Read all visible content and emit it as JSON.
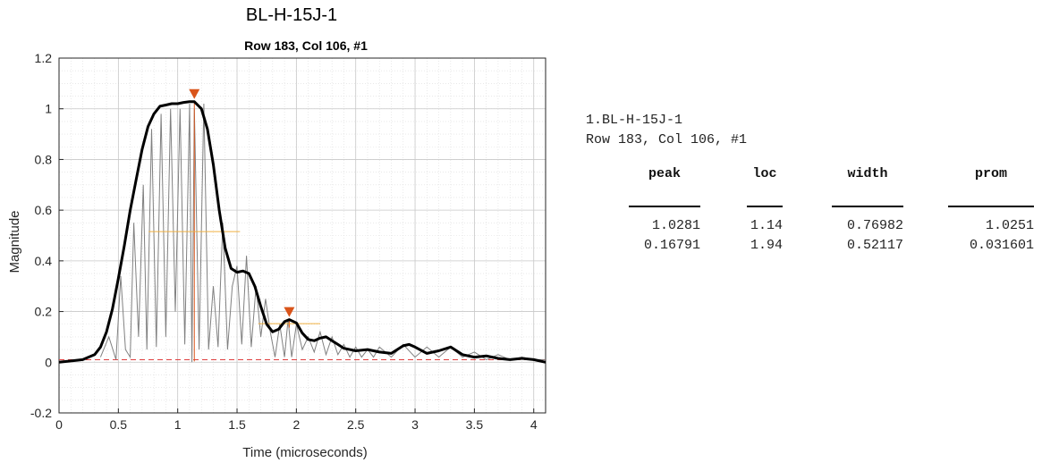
{
  "figure_title": "BL-H-15J-1",
  "chart_data": {
    "type": "line",
    "title": "Row 183, Col 106, #1",
    "xlabel": "Time (microseconds)",
    "ylabel": "Magnitude",
    "xlim": [
      0,
      4.1
    ],
    "ylim": [
      -0.2,
      1.2
    ],
    "x_ticks": [
      "0",
      "0.5",
      "1",
      "1.5",
      "2",
      "2.5",
      "3",
      "3.5",
      "4"
    ],
    "y_ticks": [
      "-0.2",
      "0",
      "0.2",
      "0.4",
      "0.6",
      "0.8",
      "1",
      "1.2"
    ],
    "grid": true,
    "minor_grid": true,
    "baseline": 0.01,
    "envelope": {
      "x": [
        0,
        0.1,
        0.2,
        0.3,
        0.35,
        0.4,
        0.45,
        0.5,
        0.55,
        0.6,
        0.65,
        0.7,
        0.75,
        0.8,
        0.85,
        0.9,
        0.95,
        1.0,
        1.05,
        1.1,
        1.14,
        1.2,
        1.25,
        1.3,
        1.35,
        1.4,
        1.45,
        1.5,
        1.55,
        1.6,
        1.65,
        1.7,
        1.75,
        1.8,
        1.85,
        1.9,
        1.94,
        2.0,
        2.05,
        2.1,
        2.15,
        2.2,
        2.25,
        2.3,
        2.35,
        2.4,
        2.5,
        2.6,
        2.7,
        2.8,
        2.9,
        2.95,
        3.0,
        3.1,
        3.2,
        3.3,
        3.4,
        3.5,
        3.6,
        3.7,
        3.8,
        3.9,
        4.0,
        4.1
      ],
      "y": [
        0,
        0.005,
        0.01,
        0.03,
        0.06,
        0.12,
        0.21,
        0.33,
        0.46,
        0.6,
        0.72,
        0.84,
        0.93,
        0.98,
        1.01,
        1.015,
        1.02,
        1.02,
        1.025,
        1.028,
        1.028,
        1.0,
        0.92,
        0.78,
        0.6,
        0.45,
        0.37,
        0.355,
        0.36,
        0.35,
        0.3,
        0.22,
        0.15,
        0.12,
        0.13,
        0.16,
        0.168,
        0.155,
        0.115,
        0.09,
        0.085,
        0.095,
        0.1,
        0.085,
        0.07,
        0.055,
        0.045,
        0.05,
        0.04,
        0.035,
        0.065,
        0.07,
        0.06,
        0.035,
        0.045,
        0.06,
        0.03,
        0.02,
        0.025,
        0.015,
        0.01,
        0.015,
        0.01,
        0.0
      ]
    },
    "signal": {
      "x": [
        0.35,
        0.42,
        0.48,
        0.52,
        0.56,
        0.6,
        0.63,
        0.67,
        0.71,
        0.74,
        0.78,
        0.82,
        0.86,
        0.9,
        0.94,
        0.98,
        1.02,
        1.06,
        1.1,
        1.12,
        1.14,
        1.18,
        1.22,
        1.26,
        1.3,
        1.34,
        1.38,
        1.42,
        1.46,
        1.5,
        1.54,
        1.58,
        1.62,
        1.66,
        1.7,
        1.74,
        1.78,
        1.82,
        1.86,
        1.9,
        1.93,
        1.96,
        2.0,
        2.05,
        2.1,
        2.15,
        2.2,
        2.25,
        2.3,
        2.35,
        2.4,
        2.45,
        2.5,
        2.55,
        2.6,
        2.65,
        2.7,
        2.8,
        2.9,
        3.0,
        3.1,
        3.2,
        3.3,
        3.4,
        3.5,
        3.6,
        3.7,
        3.8,
        3.9,
        4.0,
        4.1
      ],
      "y": [
        0.02,
        0.1,
        0.01,
        0.34,
        0.05,
        0.02,
        0.55,
        0.1,
        0.7,
        0.05,
        0.92,
        0.06,
        0.98,
        0.1,
        1.0,
        0.2,
        1.0,
        0.07,
        1.02,
        0.0,
        1.0,
        0.05,
        1.02,
        0.05,
        0.3,
        0.06,
        0.55,
        0.05,
        0.3,
        0.38,
        0.07,
        0.42,
        0.06,
        0.3,
        0.1,
        0.25,
        0.12,
        0.02,
        0.15,
        0.02,
        0.17,
        0.02,
        0.15,
        0.05,
        0.1,
        0.04,
        0.12,
        0.03,
        0.1,
        0.03,
        0.07,
        0.02,
        0.06,
        0.02,
        0.05,
        0.02,
        0.06,
        0.02,
        0.07,
        0.02,
        0.06,
        0.02,
        0.06,
        0.02,
        0.04,
        0.01,
        0.03,
        0.01,
        0.02,
        0.01,
        0.01
      ]
    },
    "peaks": [
      {
        "peak": 1.0281,
        "loc": 1.14,
        "width": 0.76982,
        "prom": 1.0251
      },
      {
        "peak": 0.16791,
        "loc": 1.94,
        "width": 0.52117,
        "prom": 0.031601
      }
    ]
  },
  "console": {
    "line1": "1.BL-H-15J-1",
    "line2": "Row 183, Col 106, #1",
    "headers": [
      "peak",
      "loc",
      "width",
      "prom"
    ],
    "rows": [
      [
        "1.0281",
        "1.14",
        "0.76982",
        "1.0251"
      ],
      [
        "0.16791",
        "1.94",
        "0.52117",
        "0.031601"
      ]
    ]
  },
  "colors": {
    "envelope": "#000000",
    "signal": "#808080",
    "marker": "#d9541a",
    "width_line": "#f0b040",
    "baseline": "#e04040",
    "grid": "#dcdcdc"
  }
}
